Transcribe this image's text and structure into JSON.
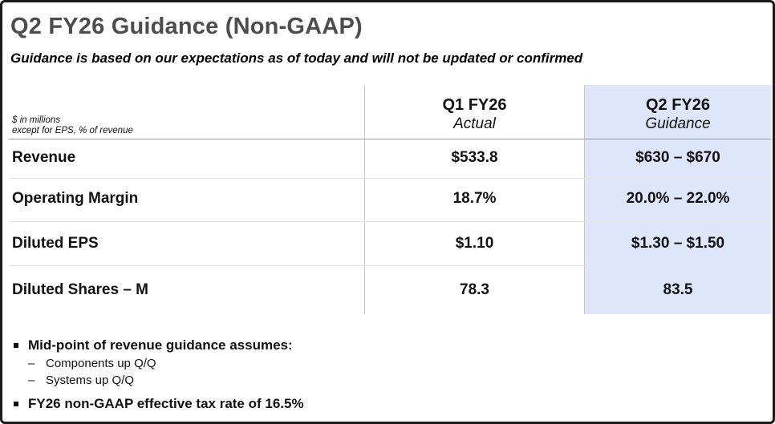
{
  "title": "Q2 FY26 Guidance (Non-GAAP)",
  "subtitle": "Guidance is based on our expectations as of today and will not be updated or confirmed",
  "table": {
    "units_line1": "$ in millions",
    "units_line2": "except for EPS, % of revenue",
    "columns": [
      {
        "line1": "Q1 FY26",
        "line2": "Actual"
      },
      {
        "line1": "Q2 FY26",
        "line2": "Guidance"
      }
    ],
    "rows": [
      {
        "label": "Revenue",
        "q1": "$533.8",
        "q2": "$630 – $670"
      },
      {
        "label": "Operating Margin",
        "q1": "18.7%",
        "q2": "20.0% – 22.0%"
      },
      {
        "label": "Diluted EPS",
        "q1": "$1.10",
        "q2": "$1.30 – $1.50"
      },
      {
        "label": "Diluted Shares – M",
        "q1": "78.3",
        "q2": "83.5"
      }
    ],
    "guidance_highlight_color": "#dde6fb"
  },
  "notes": {
    "bullet1": "Mid-point of revenue guidance assumes:",
    "sub1": "Components up Q/Q",
    "sub2": "Systems up Q/Q",
    "bullet2": "FY26 non-GAAP effective tax rate of 16.5%",
    "dash_glyph": "–"
  }
}
